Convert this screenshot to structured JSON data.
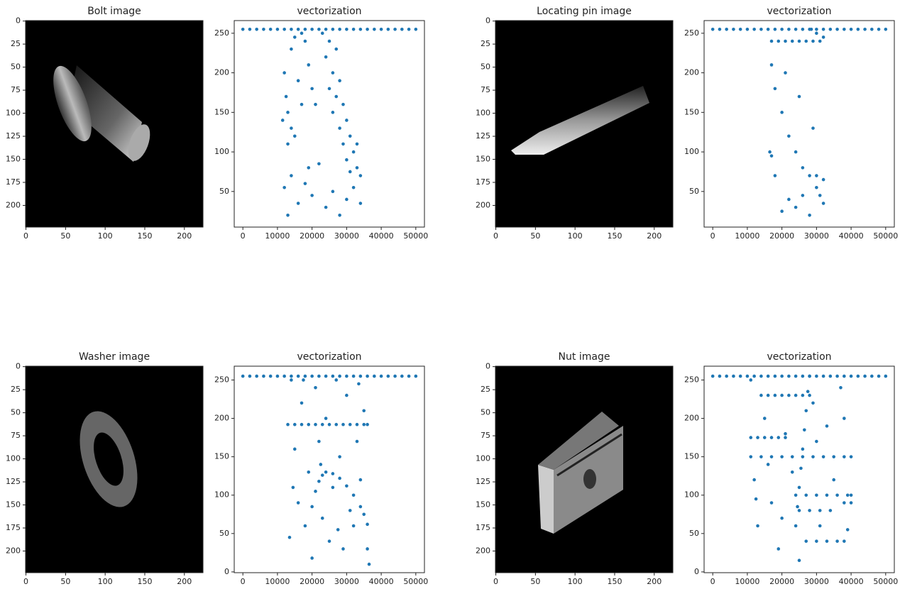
{
  "chart_data": [
    {
      "type": "image",
      "title": "Bolt image",
      "xlim": [
        -0.5,
        223.5
      ],
      "ylim": [
        223.5,
        -0.5
      ],
      "xticks": [
        0,
        50,
        100,
        150,
        200
      ],
      "yticks": [
        0,
        25,
        50,
        75,
        100,
        125,
        150,
        175,
        200
      ]
    },
    {
      "type": "scatter",
      "title": "vectorization",
      "color": "#1f77b4",
      "xlim": [
        -2500,
        52500
      ],
      "ylim": [
        5,
        266
      ],
      "xticks": [
        0,
        10000,
        20000,
        30000,
        40000,
        50000
      ],
      "yticks": [
        50,
        100,
        150,
        200,
        250
      ],
      "x": [
        0,
        2000,
        4000,
        6000,
        8000,
        10000,
        12000,
        14000,
        16000,
        18000,
        20000,
        22000,
        24000,
        26000,
        28000,
        30000,
        32000,
        34000,
        36000,
        38000,
        40000,
        42000,
        44000,
        46000,
        48000,
        50000,
        23000,
        25000,
        27000,
        24000,
        26000,
        28000,
        27000,
        29000,
        30000,
        31000,
        32000,
        33000,
        34000,
        29000,
        30000,
        31000,
        26000,
        28000,
        25000,
        33000,
        12000,
        12500,
        13000,
        14000,
        15000,
        17000,
        18000,
        19000,
        16000,
        17000,
        14000,
        13000,
        15000,
        20000,
        21000,
        11500,
        12000,
        13000,
        16000,
        18000,
        20000,
        22000,
        24000,
        26000,
        28000,
        30000,
        32000,
        34000,
        19000,
        14000
      ],
      "values": [
        255,
        255,
        255,
        255,
        255,
        255,
        255,
        255,
        255,
        255,
        255,
        255,
        255,
        255,
        255,
        255,
        255,
        255,
        255,
        255,
        255,
        255,
        255,
        255,
        255,
        255,
        250,
        240,
        230,
        220,
        200,
        190,
        170,
        160,
        140,
        120,
        100,
        80,
        70,
        110,
        90,
        75,
        150,
        130,
        180,
        110,
        200,
        170,
        150,
        230,
        245,
        250,
        240,
        210,
        190,
        160,
        130,
        110,
        120,
        180,
        160,
        140,
        55,
        20,
        35,
        60,
        45,
        85,
        30,
        50,
        20,
        40,
        55,
        35,
        80,
        70
      ]
    },
    {
      "type": "image",
      "title": "Locating pin image",
      "xlim": [
        -0.5,
        223.5
      ],
      "ylim": [
        223.5,
        -0.5
      ],
      "xticks": [
        0,
        50,
        100,
        150,
        200
      ],
      "yticks": [
        0,
        25,
        50,
        75,
        100,
        125,
        150,
        175,
        200
      ]
    },
    {
      "type": "scatter",
      "title": "vectorization",
      "color": "#1f77b4",
      "xlim": [
        -2500,
        52500
      ],
      "ylim": [
        5,
        266
      ],
      "xticks": [
        0,
        10000,
        20000,
        30000,
        40000,
        50000
      ],
      "yticks": [
        50,
        100,
        150,
        200,
        250
      ],
      "x": [
        0,
        2000,
        4000,
        6000,
        8000,
        10000,
        12000,
        14000,
        16000,
        18000,
        20000,
        22000,
        24000,
        26000,
        28000,
        30000,
        32000,
        34000,
        36000,
        38000,
        40000,
        42000,
        44000,
        46000,
        48000,
        50000,
        17000,
        19000,
        21000,
        23000,
        25000,
        27000,
        29000,
        31000,
        18000,
        20000,
        22000,
        24000,
        26000,
        28000,
        30000,
        32000,
        21000,
        25000,
        29000,
        28500,
        30000,
        32000,
        17000,
        16500,
        18000,
        20000,
        22000,
        24000,
        26000,
        28000,
        30000,
        32000,
        17000,
        31000
      ],
      "values": [
        255,
        255,
        255,
        255,
        255,
        255,
        255,
        255,
        255,
        255,
        255,
        255,
        255,
        255,
        255,
        255,
        255,
        255,
        255,
        255,
        255,
        255,
        255,
        255,
        255,
        255,
        240,
        240,
        240,
        240,
        240,
        240,
        240,
        240,
        180,
        150,
        120,
        100,
        80,
        70,
        70,
        65,
        200,
        170,
        130,
        255,
        250,
        245,
        210,
        100,
        70,
        25,
        40,
        30,
        45,
        20,
        55,
        35,
        95,
        45
      ]
    },
    {
      "type": "image",
      "title": "Washer image",
      "xlim": [
        -0.5,
        223.5
      ],
      "ylim": [
        223.5,
        -0.5
      ],
      "xticks": [
        0,
        50,
        100,
        150,
        200
      ],
      "yticks": [
        0,
        25,
        50,
        75,
        100,
        125,
        150,
        175,
        200
      ]
    },
    {
      "type": "scatter",
      "title": "vectorization",
      "color": "#1f77b4",
      "xlim": [
        -2500,
        52500
      ],
      "ylim": [
        -1,
        268
      ],
      "xticks": [
        0,
        10000,
        20000,
        30000,
        40000,
        50000
      ],
      "yticks": [
        0,
        50,
        100,
        150,
        200,
        250
      ],
      "x": [
        0,
        2000,
        4000,
        6000,
        8000,
        10000,
        12000,
        14000,
        16000,
        18000,
        20000,
        22000,
        24000,
        26000,
        28000,
        30000,
        32000,
        34000,
        36000,
        38000,
        40000,
        42000,
        44000,
        46000,
        48000,
        50000,
        13000,
        15000,
        17000,
        19000,
        21000,
        23000,
        25000,
        27000,
        29000,
        31000,
        33000,
        35000,
        36000,
        20000,
        21000,
        22000,
        23000,
        24000,
        26000,
        28000,
        30000,
        32000,
        34000,
        35000,
        36000,
        13500,
        14000,
        15000,
        16000,
        17000,
        18000,
        19000,
        20000,
        21000,
        22000,
        23000,
        24000,
        25000,
        26000,
        27000,
        28000,
        29000,
        30000,
        31000,
        32000,
        33000,
        34000,
        35000,
        36000,
        14500,
        17500,
        22500,
        27500,
        33500,
        36500
      ],
      "values": [
        255,
        255,
        255,
        255,
        255,
        255,
        255,
        255,
        255,
        255,
        255,
        255,
        255,
        255,
        255,
        255,
        255,
        255,
        255,
        255,
        255,
        255,
        255,
        255,
        255,
        255,
        192,
        192,
        192,
        192,
        192,
        192,
        192,
        192,
        192,
        192,
        192,
        192,
        192,
        85,
        105,
        118,
        126,
        130,
        128,
        122,
        112,
        100,
        85,
        75,
        62,
        45,
        250,
        160,
        90,
        220,
        60,
        130,
        18,
        240,
        170,
        70,
        200,
        40,
        110,
        250,
        150,
        30,
        230,
        80,
        60,
        170,
        120,
        210,
        30,
        110,
        250,
        140,
        55,
        245,
        10
      ]
    },
    {
      "type": "image",
      "title": "Nut image",
      "xlim": [
        -0.5,
        223.5
      ],
      "ylim": [
        223.5,
        -0.5
      ],
      "xticks": [
        0,
        50,
        100,
        150,
        200
      ],
      "yticks": [
        0,
        25,
        50,
        75,
        100,
        125,
        150,
        175,
        200
      ]
    },
    {
      "type": "scatter",
      "title": "vectorization",
      "color": "#1f77b4",
      "xlim": [
        -2500,
        52500
      ],
      "ylim": [
        -1,
        268
      ],
      "xticks": [
        0,
        10000,
        20000,
        30000,
        40000,
        50000
      ],
      "yticks": [
        0,
        50,
        100,
        150,
        200,
        250
      ],
      "x": [
        0,
        2000,
        4000,
        6000,
        8000,
        10000,
        12000,
        14000,
        16000,
        18000,
        20000,
        22000,
        24000,
        26000,
        28000,
        30000,
        32000,
        34000,
        36000,
        38000,
        40000,
        42000,
        44000,
        46000,
        48000,
        50000,
        14000,
        16000,
        18000,
        20000,
        22000,
        24000,
        26000,
        28000,
        11000,
        13000,
        15000,
        17000,
        19000,
        21000,
        11000,
        14000,
        17000,
        20000,
        23000,
        26000,
        29000,
        32000,
        35000,
        38000,
        40000,
        24000,
        27000,
        30000,
        33000,
        36000,
        39000,
        40000,
        38000,
        40000,
        25000,
        28000,
        31000,
        34000,
        27000,
        30000,
        33000,
        36000,
        38000,
        24000,
        24500,
        25000,
        25500,
        26000,
        26500,
        27000,
        27500,
        28000,
        11000,
        12000,
        13000,
        15000,
        17000,
        19000,
        21000,
        23000,
        25000,
        29000,
        31000,
        33000,
        35000,
        37000,
        39000,
        12500,
        16000,
        20000,
        30000,
        38000
      ],
      "values": [
        255,
        255,
        255,
        255,
        255,
        255,
        255,
        255,
        255,
        255,
        255,
        255,
        255,
        255,
        255,
        255,
        255,
        255,
        255,
        255,
        255,
        255,
        255,
        255,
        255,
        255,
        230,
        230,
        230,
        230,
        230,
        230,
        230,
        230,
        175,
        175,
        175,
        175,
        175,
        175,
        150,
        150,
        150,
        150,
        150,
        150,
        150,
        150,
        150,
        150,
        150,
        100,
        100,
        100,
        100,
        100,
        100,
        100,
        90,
        90,
        80,
        80,
        80,
        80,
        40,
        40,
        40,
        40,
        40,
        60,
        85,
        110,
        135,
        160,
        185,
        210,
        235,
        255,
        250,
        120,
        60,
        200,
        90,
        30,
        180,
        130,
        15,
        220,
        60,
        190,
        120,
        240,
        55,
        95,
        140,
        70,
        170,
        200
      ]
    }
  ]
}
